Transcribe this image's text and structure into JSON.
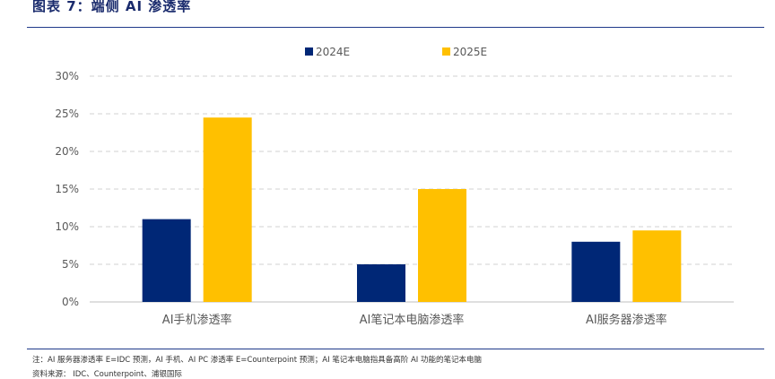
{
  "figure_title": "图表 7：端侧 AI 渗透率",
  "notes": {
    "note": "注：AI 服务器渗透率 E=IDC 预测，AI 手机、AI PC 渗透率 E=Counterpoint 预测；AI 笔记本电脑指具备高阶 AI 功能的笔记本电脑",
    "source": "资料来源： IDC、Counterpoint、浦银国际"
  },
  "colors": {
    "series_2024E": "#002776",
    "series_2025E": "#ffc000",
    "grid": "#d0d0d0"
  },
  "chart_data": {
    "type": "bar",
    "title": "",
    "xlabel": "",
    "ylabel": "",
    "categories": [
      "AI手机渗透率",
      "AI笔记本电脑渗透率",
      "AI服务器渗透率"
    ],
    "series": [
      {
        "name": "2024E",
        "values": [
          11,
          5,
          8
        ]
      },
      {
        "name": "2025E",
        "values": [
          24.5,
          15,
          9.5
        ]
      }
    ],
    "ylim": [
      0,
      30
    ],
    "yticks": [
      "0%",
      "5%",
      "10%",
      "15%",
      "20%",
      "25%",
      "30%"
    ],
    "grid": true,
    "legend_position": "top-center"
  }
}
